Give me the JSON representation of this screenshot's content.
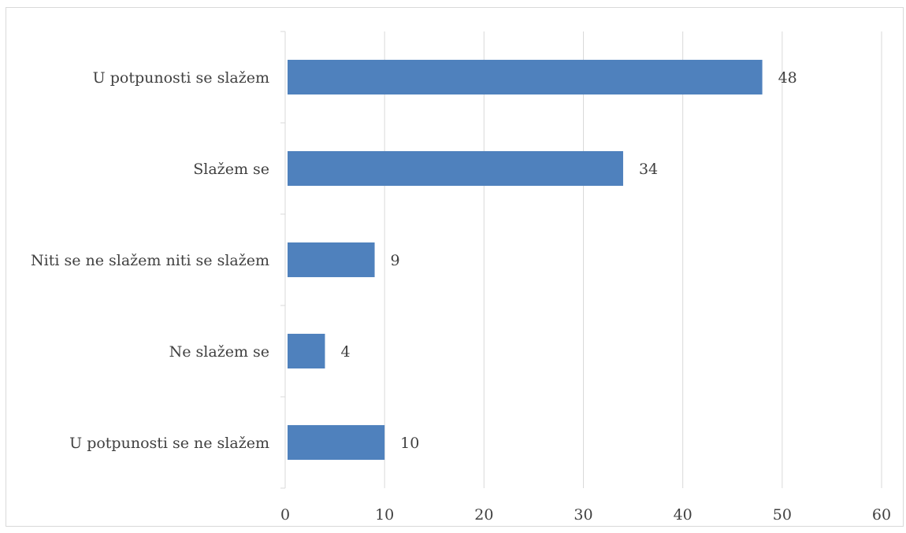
{
  "chart_data": {
    "type": "bar",
    "orientation": "horizontal",
    "categories": [
      "U potpunosti se slažem",
      "Slažem se",
      "Niti se ne slažem niti se slažem",
      "Ne slažem se",
      "U potpunosti se ne slažem"
    ],
    "values": [
      48,
      34,
      9,
      4,
      10
    ],
    "xlim": [
      0,
      60
    ],
    "xticks": [
      0,
      10,
      20,
      30,
      40,
      50,
      60
    ],
    "grid": true,
    "data_labels": true,
    "legend": "none",
    "title": "",
    "xlabel": "",
    "ylabel": ""
  },
  "colors": {
    "bar": "#4f81bd",
    "grid": "#d9d9d9",
    "text": "#404040"
  }
}
